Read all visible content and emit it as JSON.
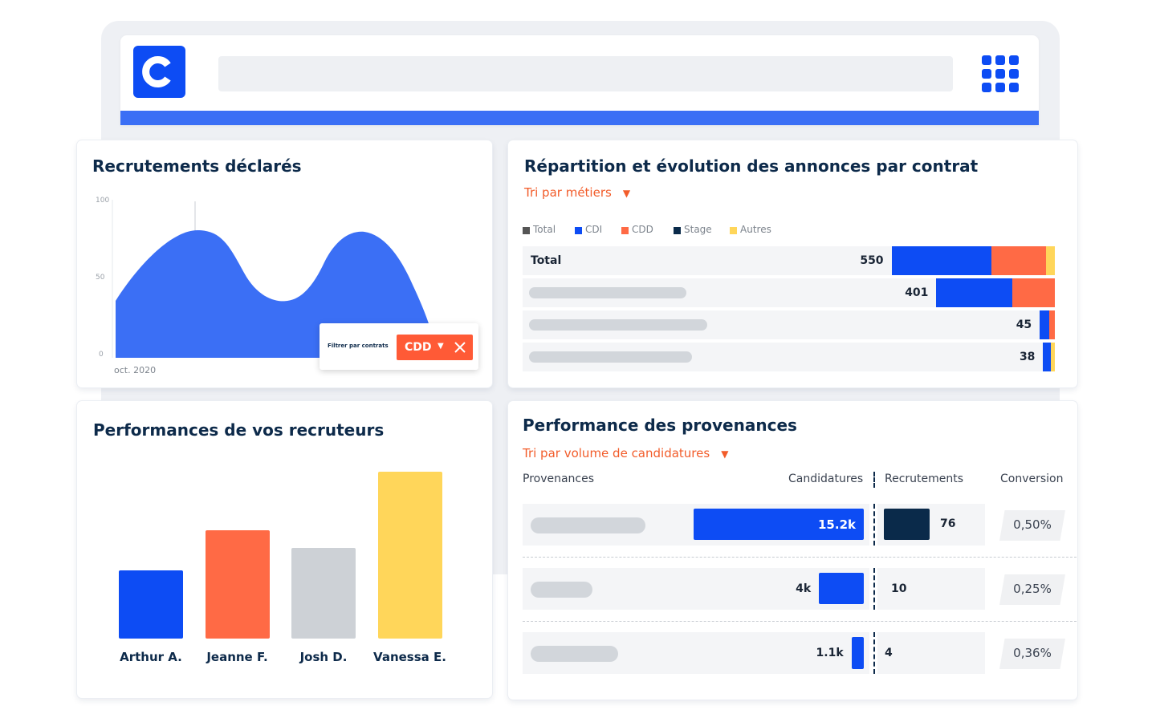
{
  "colors": {
    "blue": "#0d4cf4",
    "orange": "#ff6a45",
    "grey": "#cdd1d6",
    "yellow": "#ffd65a",
    "navy": "#0a2a4a",
    "accent_text": "#f25c2a"
  },
  "browser": {
    "logo_letter": "C",
    "apps_icon": "grid-icon"
  },
  "recrutements": {
    "title": "Recrutements déclarés",
    "y_ticks": [
      "100",
      "50",
      "0"
    ],
    "x_label": "oct. 2020",
    "filter": {
      "label": "Filtrer par contrats",
      "selected": "CDD"
    }
  },
  "repartition": {
    "title": "Répartition et évolution des annonces par contrat",
    "sort": "Tri par métiers",
    "legend": [
      {
        "name": "Total",
        "color": "#555555"
      },
      {
        "name": "CDI",
        "color": "#0d4cf4"
      },
      {
        "name": "CDD",
        "color": "#ff6a45"
      },
      {
        "name": "Stage",
        "color": "#0a2a4a"
      },
      {
        "name": "Autres",
        "color": "#ffd65a"
      }
    ],
    "rows": [
      {
        "label": "Total",
        "value": "550",
        "segments": [
          205,
          112,
          18
        ]
      },
      {
        "label": "",
        "value": "401",
        "segments": [
          156,
          87,
          0
        ]
      },
      {
        "label": "",
        "value": "45",
        "segments": [
          20,
          11,
          0
        ]
      },
      {
        "label": "",
        "value": "38",
        "segments": [
          15,
          0,
          9
        ]
      }
    ]
  },
  "recruteurs": {
    "title": "Performances de vos recruteurs",
    "chart_data": {
      "type": "bar",
      "categories": [
        "Arthur A.",
        "Jeanne F.",
        "Josh D.",
        "Vanessa E."
      ],
      "values": [
        85,
        135,
        113,
        208
      ],
      "colors": [
        "#0d4cf4",
        "#ff6a45",
        "#cdd1d6",
        "#ffd65a"
      ]
    }
  },
  "provenances": {
    "title": "Performance des provenances",
    "sort": "Tri par volume de candidatures",
    "headers": {
      "source": "Provenances",
      "candidatures": "Candidatures",
      "recrutements": "Recrutements",
      "conversion": "Conversion"
    },
    "rows": [
      {
        "candidatures": "15.2k",
        "cand_value": 15.2,
        "recrutements": "76",
        "recr_value": 76,
        "conversion": "0,50%"
      },
      {
        "candidatures": "4k",
        "cand_value": 4,
        "recrutements": "10",
        "recr_value": 10,
        "conversion": "0,25%"
      },
      {
        "candidatures": "1.1k",
        "cand_value": 1.1,
        "recrutements": "4",
        "recr_value": 4,
        "conversion": "0,36%"
      }
    ]
  }
}
